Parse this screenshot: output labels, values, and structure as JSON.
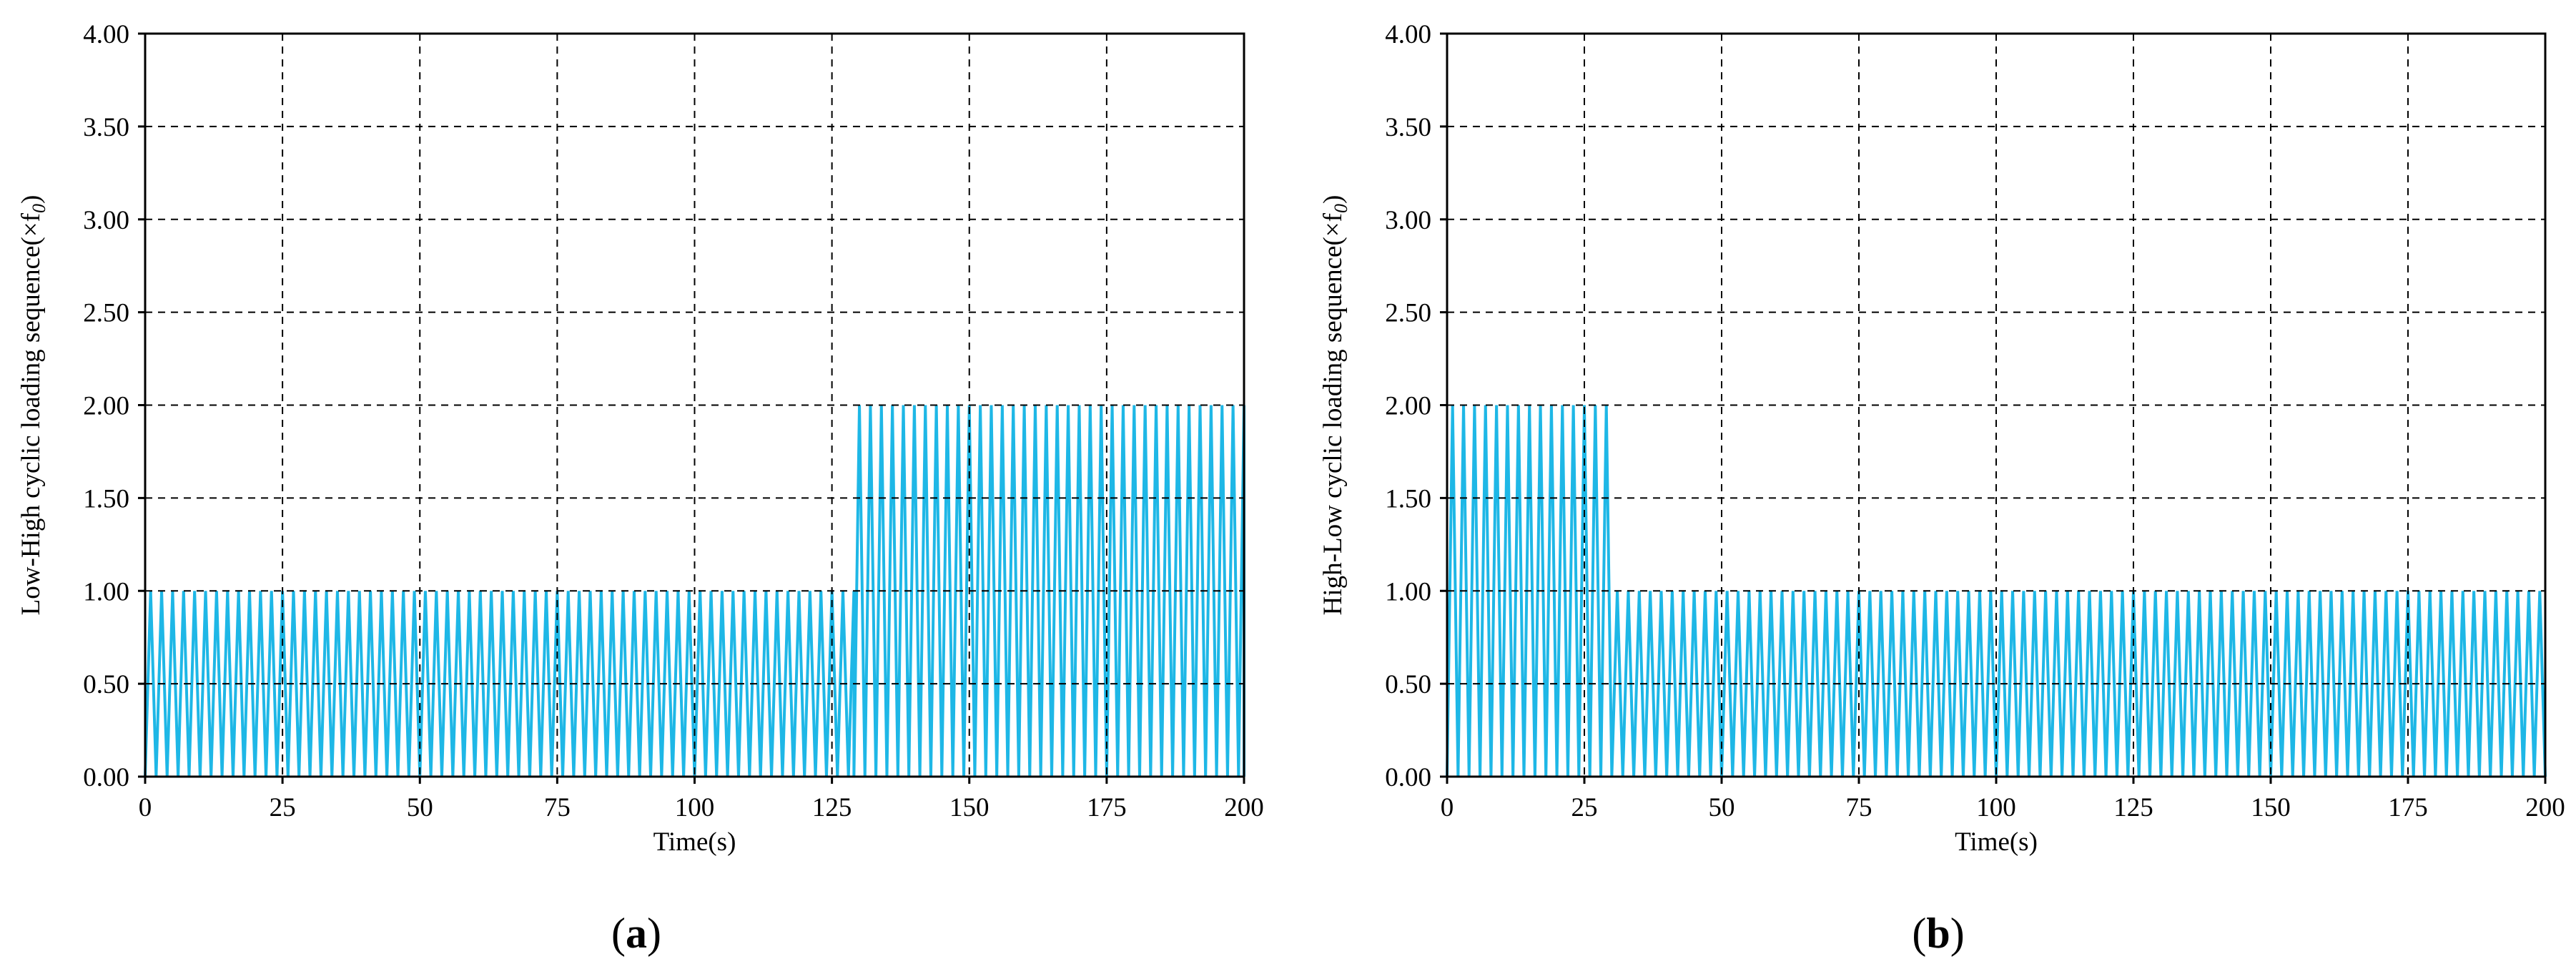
{
  "line_color": "#1EB7E6",
  "chart_data": [
    {
      "type": "line",
      "panel_label": "a",
      "xlabel": "Time(s)",
      "ylabel": "Low-High cyclic loading sequence(×f",
      "ylabel_sub": "0",
      "ylabel_close": ")",
      "xlim": [
        0,
        200
      ],
      "ylim": [
        0,
        4
      ],
      "x_ticks": [
        0,
        25,
        50,
        75,
        100,
        125,
        150,
        175,
        200
      ],
      "y_ticks": [
        "0.00",
        "0.50",
        "1.00",
        "1.50",
        "2.00",
        "2.50",
        "3.00",
        "3.50",
        "4.00"
      ],
      "grid": true,
      "series": [
        {
          "segments": [
            {
              "t_start": 0,
              "t_end": 129,
              "min": 0,
              "max": 1.0,
              "period_s": 2
            },
            {
              "t_start": 129,
              "t_end": 200,
              "min": 0,
              "max": 2.0,
              "period_s": 2
            }
          ]
        }
      ]
    },
    {
      "type": "line",
      "panel_label": "b",
      "xlabel": "Time(s)",
      "ylabel": "High-Low cyclic loading sequence(×f",
      "ylabel_sub": "0",
      "ylabel_close": ")",
      "xlim": [
        0,
        200
      ],
      "ylim": [
        0,
        4
      ],
      "x_ticks": [
        0,
        25,
        50,
        75,
        100,
        125,
        150,
        175,
        200
      ],
      "y_ticks": [
        "0.00",
        "0.50",
        "1.00",
        "1.50",
        "2.00",
        "2.50",
        "3.00",
        "3.50",
        "4.00"
      ],
      "grid": true,
      "series": [
        {
          "segments": [
            {
              "t_start": 0,
              "t_end": 30,
              "min": 0,
              "max": 2.0,
              "period_s": 2
            },
            {
              "t_start": 30,
              "t_end": 200,
              "min": 0,
              "max": 1.0,
              "period_s": 2
            }
          ]
        }
      ]
    }
  ]
}
